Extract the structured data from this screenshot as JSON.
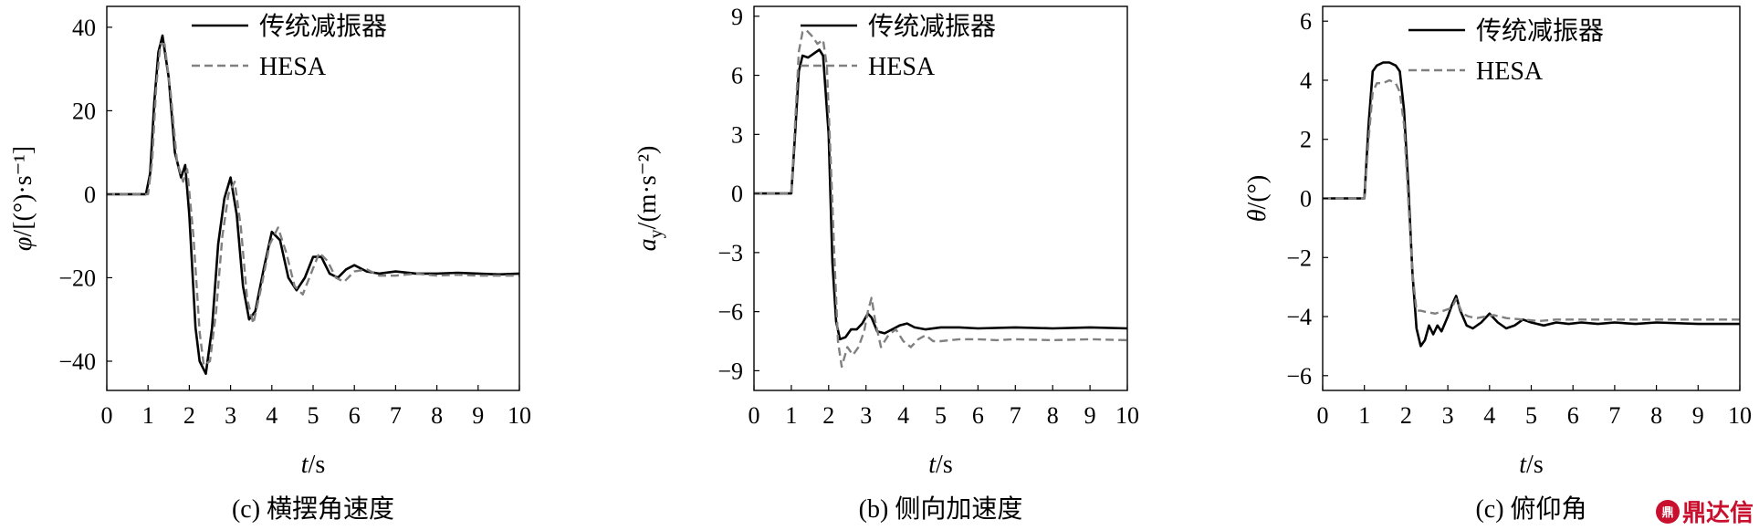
{
  "watermark": {
    "text": "鼎达信"
  },
  "chart_data": [
    {
      "type": "line",
      "caption": "(c) 横摆角速度",
      "xlabel": "t/s",
      "ylabel": "φ/[(°)·s⁻¹]",
      "xlim": [
        0,
        10
      ],
      "ylim": [
        -47,
        45
      ],
      "xticks": [
        0,
        1,
        2,
        3,
        4,
        5,
        6,
        7,
        8,
        9,
        10
      ],
      "yticks": [
        -40,
        -20,
        0,
        20,
        40
      ],
      "grid": false,
      "legend_position": "top-right",
      "series": [
        {
          "name": "传统减振器",
          "style": "solid",
          "color": "#000000",
          "x": [
            0,
            0.95,
            1.05,
            1.15,
            1.25,
            1.35,
            1.5,
            1.65,
            1.8,
            1.9,
            2.0,
            2.15,
            2.25,
            2.4,
            2.55,
            2.7,
            2.85,
            3.0,
            3.15,
            3.3,
            3.45,
            3.6,
            3.8,
            4.0,
            4.2,
            4.4,
            4.6,
            4.8,
            5.0,
            5.2,
            5.4,
            5.6,
            5.8,
            6.0,
            6.3,
            6.6,
            7.0,
            7.5,
            8.0,
            8.5,
            9.0,
            9.5,
            10.0
          ],
          "y": [
            0,
            0,
            5,
            22,
            34,
            38,
            28,
            10,
            4,
            7,
            -5,
            -32,
            -40,
            -43,
            -32,
            -12,
            -1,
            4,
            -5,
            -22,
            -30,
            -28,
            -18,
            -9,
            -11,
            -20,
            -23,
            -20,
            -15,
            -15,
            -19,
            -20,
            -18,
            -17,
            -18.5,
            -19,
            -18.5,
            -19,
            -19,
            -18.8,
            -19,
            -19.2,
            -19
          ]
        },
        {
          "name": "HESA",
          "style": "dashed",
          "color": "#808080",
          "x": [
            0,
            1.0,
            1.1,
            1.2,
            1.3,
            1.4,
            1.55,
            1.7,
            1.85,
            1.95,
            2.1,
            2.25,
            2.35,
            2.5,
            2.65,
            2.8,
            2.95,
            3.1,
            3.25,
            3.4,
            3.55,
            3.75,
            3.95,
            4.15,
            4.35,
            4.55,
            4.75,
            4.95,
            5.15,
            5.35,
            5.55,
            5.75,
            6.0,
            6.3,
            6.6,
            7.0,
            7.5,
            8.0,
            8.5,
            9.0,
            9.5,
            10.0
          ],
          "y": [
            0,
            0,
            8,
            26,
            36,
            36,
            24,
            8,
            3,
            6,
            -10,
            -33,
            -41,
            -40,
            -28,
            -10,
            0,
            3,
            -8,
            -25,
            -31,
            -22,
            -12,
            -8,
            -14,
            -22,
            -24,
            -19,
            -14,
            -16,
            -20,
            -21,
            -18.5,
            -18,
            -19.5,
            -19.5,
            -19,
            -19.5,
            -19.3,
            -19.5,
            -19.5,
            -19.5
          ]
        }
      ]
    },
    {
      "type": "line",
      "caption": "(b) 侧向加速度",
      "xlabel": "t/s",
      "ylabel": "a_y/(m·s⁻²)",
      "xlim": [
        0,
        10
      ],
      "ylim": [
        -10,
        9.5
      ],
      "xticks": [
        0,
        1,
        2,
        3,
        4,
        5,
        6,
        7,
        8,
        9,
        10
      ],
      "yticks": [
        -9,
        -6,
        -3,
        0,
        3,
        6,
        9
      ],
      "grid": false,
      "legend_position": "top-right",
      "series": [
        {
          "name": "传统减振器",
          "style": "solid",
          "color": "#000000",
          "x": [
            0,
            1.0,
            1.1,
            1.2,
            1.3,
            1.45,
            1.6,
            1.75,
            1.85,
            2.0,
            2.1,
            2.2,
            2.3,
            2.45,
            2.6,
            2.75,
            2.9,
            3.05,
            3.15,
            3.3,
            3.5,
            3.7,
            3.9,
            4.1,
            4.3,
            4.6,
            5.0,
            5.5,
            6.0,
            7.0,
            8.0,
            9.0,
            10.0
          ],
          "y": [
            0,
            0,
            3,
            6.2,
            7.0,
            6.9,
            7.1,
            7.3,
            7.0,
            3.0,
            -3.5,
            -6.5,
            -7.4,
            -7.3,
            -6.9,
            -6.9,
            -6.6,
            -6.1,
            -6.3,
            -7.0,
            -7.1,
            -6.9,
            -6.7,
            -6.6,
            -6.8,
            -6.9,
            -6.8,
            -6.8,
            -6.85,
            -6.8,
            -6.85,
            -6.8,
            -6.85
          ]
        },
        {
          "name": "HESA",
          "style": "dashed",
          "color": "#808080",
          "x": [
            0,
            1.0,
            1.1,
            1.2,
            1.3,
            1.4,
            1.55,
            1.7,
            1.85,
            1.95,
            2.05,
            2.15,
            2.25,
            2.35,
            2.5,
            2.65,
            2.8,
            2.95,
            3.05,
            3.15,
            3.25,
            3.4,
            3.6,
            3.8,
            4.0,
            4.2,
            4.4,
            4.6,
            4.8,
            5.0,
            5.5,
            6.0,
            6.5,
            7.0,
            8.0,
            9.0,
            10.0
          ],
          "y": [
            0,
            0,
            3.5,
            7.2,
            8.2,
            8.3,
            8.0,
            7.6,
            7.8,
            6.5,
            2.0,
            -3.0,
            -7.5,
            -8.8,
            -7.8,
            -8.2,
            -7.8,
            -7.0,
            -6.0,
            -5.3,
            -6.5,
            -7.8,
            -7.2,
            -6.9,
            -7.5,
            -7.8,
            -7.4,
            -7.2,
            -7.5,
            -7.5,
            -7.4,
            -7.4,
            -7.45,
            -7.4,
            -7.45,
            -7.4,
            -7.45
          ]
        }
      ]
    },
    {
      "type": "line",
      "caption": "(c) 俯仰角",
      "xlabel": "t/s",
      "ylabel": "θ/(°)",
      "xlim": [
        0,
        10
      ],
      "ylim": [
        -6.5,
        6.5
      ],
      "xticks": [
        0,
        1,
        2,
        3,
        4,
        5,
        6,
        7,
        8,
        9,
        10
      ],
      "yticks": [
        -6,
        -4,
        -2,
        0,
        2,
        4,
        6
      ],
      "grid": false,
      "legend_position": "top-right",
      "series": [
        {
          "name": "传统减振器",
          "style": "solid",
          "color": "#000000",
          "x": [
            0,
            1.0,
            1.1,
            1.2,
            1.3,
            1.45,
            1.6,
            1.75,
            1.85,
            1.95,
            2.05,
            2.15,
            2.25,
            2.35,
            2.45,
            2.55,
            2.65,
            2.75,
            2.85,
            3.0,
            3.1,
            3.2,
            3.3,
            3.45,
            3.6,
            3.8,
            4.0,
            4.2,
            4.4,
            4.6,
            4.8,
            5.0,
            5.3,
            5.6,
            5.9,
            6.2,
            6.6,
            7.0,
            7.5,
            8.0,
            9.0,
            10.0
          ],
          "y": [
            0,
            0,
            2.5,
            4.3,
            4.5,
            4.6,
            4.6,
            4.5,
            4.3,
            3.0,
            0.5,
            -2.5,
            -4.4,
            -5.0,
            -4.8,
            -4.3,
            -4.6,
            -4.3,
            -4.5,
            -4.0,
            -3.6,
            -3.3,
            -3.8,
            -4.3,
            -4.4,
            -4.2,
            -3.9,
            -4.2,
            -4.4,
            -4.3,
            -4.1,
            -4.2,
            -4.3,
            -4.2,
            -4.25,
            -4.2,
            -4.25,
            -4.2,
            -4.25,
            -4.2,
            -4.25,
            -4.25
          ]
        },
        {
          "name": "HESA",
          "style": "dashed",
          "color": "#808080",
          "x": [
            0,
            1.0,
            1.1,
            1.2,
            1.3,
            1.45,
            1.6,
            1.75,
            1.85,
            1.95,
            2.05,
            2.15,
            2.25,
            2.35,
            2.5,
            2.7,
            2.9,
            3.1,
            3.2,
            3.35,
            3.5,
            3.7,
            3.9,
            4.1,
            4.4,
            4.8,
            5.2,
            5.6,
            6.0,
            6.5,
            7.0,
            8.0,
            9.0,
            10.0
          ],
          "y": [
            0,
            0,
            2.0,
            3.6,
            3.9,
            3.9,
            4.0,
            3.9,
            3.6,
            2.5,
            0.0,
            -2.5,
            -3.8,
            -3.8,
            -3.85,
            -3.9,
            -3.8,
            -3.7,
            -3.4,
            -3.9,
            -4.0,
            -4.05,
            -4.0,
            -3.95,
            -4.05,
            -4.1,
            -4.15,
            -4.1,
            -4.1,
            -4.1,
            -4.1,
            -4.1,
            -4.1,
            -4.1
          ]
        }
      ]
    }
  ]
}
